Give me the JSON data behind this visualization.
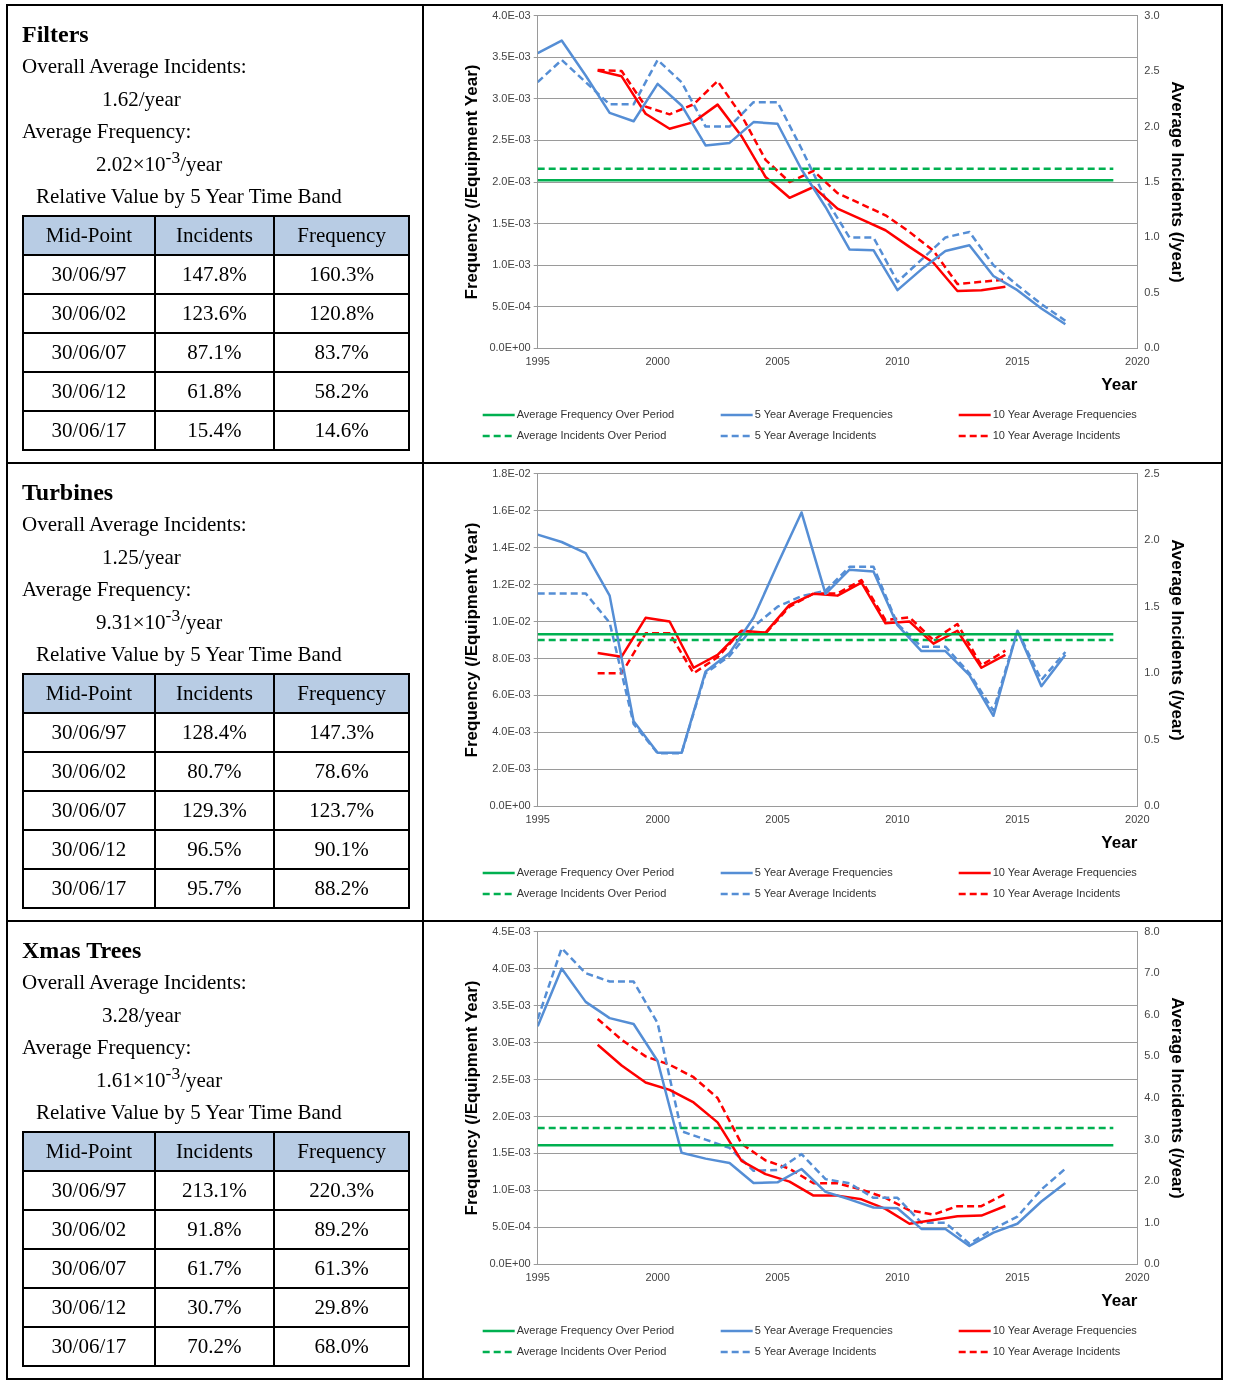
{
  "chart_data": [
    {
      "type": "other",
      "title": "Filters",
      "annotations": [
        "Overall Average Incidents:",
        "1.62/year",
        "Average Frequency:",
        "2.02×10$^{-3}$/year",
        "Relative Value by 5 Year Time Band"
      ],
      "xlabel": "Mid-Point",
      "categories": [
        "30/06/97",
        "30/06/02",
        "30/06/07",
        "30/06/12",
        "30/06/17"
      ],
      "series": [
        {
          "name": "Incidents",
          "values": [
            147.8,
            123.6,
            87.1,
            61.8,
            15.4
          ],
          "value_labels": [
            "147.8%",
            "123.6%",
            "87.1%",
            "61.8%",
            "15.4%"
          ]
        },
        {
          "name": "Frequency",
          "values": [
            160.3,
            120.8,
            83.7,
            58.2,
            14.6
          ],
          "value_labels": [
            "160.3%",
            "120.8%",
            "83.7%",
            "58.2%",
            "14.6%"
          ]
        }
      ]
    },
    {
      "type": "line",
      "xlabel": "Year",
      "ylabel": "Frequency (/Equipment Year)",
      "y2label": "Average Incidents (/year)",
      "grid": "y",
      "legend": "bottom",
      "marker": "none",
      "xlim": [
        1995,
        2020
      ],
      "xticks": [
        1995,
        2000,
        2005,
        2010,
        2015,
        2020
      ],
      "ylim": [
        0,
        0.004
      ],
      "yticks": [
        {
          "value": 0,
          "label": "0.0E+00"
        },
        {
          "value": 0.0005,
          "label": "5.0E-04"
        },
        {
          "value": 0.001,
          "label": "1.0E-03"
        },
        {
          "value": 0.0015,
          "label": "1.5E-03"
        },
        {
          "value": 0.002,
          "label": "2.0E-03"
        },
        {
          "value": 0.0025,
          "label": "2.5E-03"
        },
        {
          "value": 0.003,
          "label": "3.0E-03"
        },
        {
          "value": 0.0035,
          "label": "3.5E-03"
        },
        {
          "value": 0.004,
          "label": "4.0E-03"
        }
      ],
      "y2lim": [
        0,
        3
      ],
      "y2ticks": [
        {
          "value": 0,
          "label": "0.0"
        },
        {
          "value": 0.5,
          "label": "0.5"
        },
        {
          "value": 1,
          "label": "1.0"
        },
        {
          "value": 1.5,
          "label": "1.5"
        },
        {
          "value": 2,
          "label": "2.0"
        },
        {
          "value": 2.5,
          "label": "2.5"
        },
        {
          "value": 3,
          "label": "3.0"
        }
      ],
      "series": [
        {
          "name": "Average Frequency Over Period",
          "color": "#00b050",
          "line_style": "solid",
          "x": [
            1995,
            2019
          ],
          "values": [
            0.00202,
            0.00202
          ]
        },
        {
          "name": "5 Year Average Frequencies",
          "color": "#558ed5",
          "line_style": "solid",
          "x": [
            1995,
            1996,
            1997,
            1998,
            1999,
            2000,
            2001,
            2002,
            2003,
            2004,
            2005,
            2006,
            2007,
            2008,
            2009,
            2010,
            2011,
            2012,
            2013,
            2014,
            2015,
            2016,
            2017
          ],
          "values": [
            0.00355,
            0.0037,
            0.00328,
            0.00283,
            0.00273,
            0.00318,
            0.00292,
            0.00244,
            0.00247,
            0.00272,
            0.0027,
            0.00215,
            0.0017,
            0.00119,
            0.00118,
            0.0007,
            0.00095,
            0.00117,
            0.00124,
            0.00087,
            0.0007,
            0.00048,
            0.00029
          ]
        },
        {
          "name": "10 Year Average Frequencies",
          "color": "#ff0000",
          "line_style": "solid",
          "x": [
            1997.5,
            1998.5,
            1999.5,
            2000.5,
            2001.5,
            2002.5,
            2003.5,
            2004.5,
            2005.5,
            2006.5,
            2007.5,
            2008.5,
            2009.5,
            2010.5,
            2011.5,
            2012.5,
            2013.5,
            2014.5
          ],
          "values": [
            0.00334,
            0.00327,
            0.00282,
            0.00264,
            0.00272,
            0.00293,
            0.00255,
            0.00206,
            0.00181,
            0.00194,
            0.00168,
            0.00155,
            0.00142,
            0.00122,
            0.00103,
            0.00069,
            0.0007,
            0.00074
          ]
        },
        {
          "name": "Average Incidents Over Period",
          "color": "#00b050",
          "line_style": "dashed",
          "axis": "y2",
          "x": [
            1995,
            2019
          ],
          "values": [
            1.62,
            1.62
          ]
        },
        {
          "name": "5 Year Average Incidents",
          "color": "#558ed5",
          "line_style": "dashed",
          "axis": "y2",
          "x": [
            1995,
            1996,
            1997,
            1998,
            1999,
            2000,
            2001,
            2002,
            2003,
            2004,
            2005,
            2006,
            2007,
            2008,
            2009,
            2010,
            2011,
            2012,
            2013,
            2014,
            2015,
            2016,
            2017
          ],
          "values": [
            2.4,
            2.6,
            2.4,
            2.2,
            2.2,
            2.6,
            2.4,
            2.0,
            2.0,
            2.22,
            2.22,
            1.8,
            1.35,
            1.0,
            1.0,
            0.6,
            0.8,
            1.0,
            1.05,
            0.75,
            0.57,
            0.4,
            0.25
          ]
        },
        {
          "name": "10 Year Average Incidents",
          "color": "#ff0000",
          "line_style": "dashed",
          "axis": "y2",
          "x": [
            1997.5,
            1998.5,
            1999.5,
            2000.5,
            2001.5,
            2002.5,
            2003.5,
            2004.5,
            2005.5,
            2006.5,
            2007.5,
            2008.5,
            2009.5,
            2010.5,
            2011.5,
            2012.5,
            2013.5,
            2014.5
          ],
          "values": [
            2.51,
            2.5,
            2.18,
            2.11,
            2.2,
            2.41,
            2.1,
            1.7,
            1.5,
            1.6,
            1.4,
            1.3,
            1.2,
            1.05,
            0.88,
            0.58,
            0.6,
            0.62
          ]
        }
      ]
    },
    {
      "type": "other",
      "title": "Turbines",
      "annotations": [
        "Overall Average Incidents:",
        "1.25/year",
        "Average Frequency:",
        "9.31×10$^{-3}$/year",
        "Relative Value by 5 Year Time Band"
      ],
      "xlabel": "Mid-Point",
      "categories": [
        "30/06/97",
        "30/06/02",
        "30/06/07",
        "30/06/12",
        "30/06/17"
      ],
      "series": [
        {
          "name": "Incidents",
          "values": [
            128.4,
            80.7,
            129.3,
            96.5,
            95.7
          ],
          "value_labels": [
            "128.4%",
            "80.7%",
            "129.3%",
            "96.5%",
            "95.7%"
          ]
        },
        {
          "name": "Frequency",
          "values": [
            147.3,
            78.6,
            123.7,
            90.1,
            88.2
          ],
          "value_labels": [
            "147.3%",
            "78.6%",
            "123.7%",
            "90.1%",
            "88.2%"
          ]
        }
      ]
    },
    {
      "type": "line",
      "xlabel": "Year",
      "ylabel": "Frequency (/Equipment Year)",
      "y2label": "Average Incidents (/year)",
      "grid": "y",
      "legend": "bottom",
      "marker": "none",
      "xlim": [
        1995,
        2020
      ],
      "xticks": [
        1995,
        2000,
        2005,
        2010,
        2015,
        2020
      ],
      "ylim": [
        0,
        0.018
      ],
      "yticks": [
        {
          "value": 0,
          "label": "0.0E+00"
        },
        {
          "value": 0.002,
          "label": "2.0E-03"
        },
        {
          "value": 0.004,
          "label": "4.0E-03"
        },
        {
          "value": 0.006,
          "label": "6.0E-03"
        },
        {
          "value": 0.008,
          "label": "8.0E-03"
        },
        {
          "value": 0.01,
          "label": "1.0E-02"
        },
        {
          "value": 0.012,
          "label": "1.2E-02"
        },
        {
          "value": 0.014,
          "label": "1.4E-02"
        },
        {
          "value": 0.016,
          "label": "1.6E-02"
        },
        {
          "value": 0.018,
          "label": "1.8E-02"
        }
      ],
      "y2lim": [
        0,
        2.5
      ],
      "y2ticks": [
        {
          "value": 0,
          "label": "0.0"
        },
        {
          "value": 0.5,
          "label": "0.5"
        },
        {
          "value": 1,
          "label": "1.0"
        },
        {
          "value": 1.5,
          "label": "1.5"
        },
        {
          "value": 2,
          "label": "2.0"
        },
        {
          "value": 2.5,
          "label": "2.5"
        }
      ],
      "series": [
        {
          "name": "Average Frequency Over Period",
          "color": "#00b050",
          "line_style": "solid",
          "x": [
            1995,
            2019
          ],
          "values": [
            0.00931,
            0.00931
          ]
        },
        {
          "name": "5 Year Average Frequencies",
          "color": "#558ed5",
          "line_style": "solid",
          "x": [
            1995,
            1996,
            1997,
            1998,
            1999,
            2000,
            2001,
            2002,
            2003,
            2004,
            2005,
            2006,
            2007,
            2008,
            2009,
            2010,
            2011,
            2012,
            2013,
            2014,
            2015,
            2016,
            2017
          ],
          "values": [
            0.0147,
            0.0143,
            0.0137,
            0.0114,
            0.0046,
            0.0029,
            0.0029,
            0.0073,
            0.0083,
            0.0102,
            0.0131,
            0.0159,
            0.0115,
            0.0128,
            0.0127,
            0.0098,
            0.0084,
            0.0084,
            0.0071,
            0.0049,
            0.0095,
            0.0065,
            0.0082
          ]
        },
        {
          "name": "10 Year Average Frequencies",
          "color": "#ff0000",
          "line_style": "solid",
          "x": [
            1997.5,
            1998.5,
            1999.5,
            2000.5,
            2001.5,
            2002.5,
            2003.5,
            2004.5,
            2005.5,
            2006.5,
            2007.5,
            2008.5,
            2009.5,
            2010.5,
            2011.5,
            2012.5,
            2013.5,
            2014.5
          ],
          "values": [
            0.0083,
            0.0081,
            0.0102,
            0.01,
            0.0075,
            0.0082,
            0.0095,
            0.0094,
            0.0109,
            0.0115,
            0.0114,
            0.0121,
            0.0099,
            0.01,
            0.0088,
            0.0095,
            0.0075,
            0.0082
          ]
        },
        {
          "name": "Average Incidents Over Period",
          "color": "#00b050",
          "line_style": "dashed",
          "axis": "y2",
          "x": [
            1995,
            2019
          ],
          "values": [
            1.25,
            1.25
          ]
        },
        {
          "name": "5 Year Average Incidents",
          "color": "#558ed5",
          "line_style": "dashed",
          "axis": "y2",
          "x": [
            1995,
            1996,
            1997,
            1998,
            1999,
            2000,
            2001,
            2002,
            2003,
            2004,
            2005,
            2006,
            2007,
            2008,
            2009,
            2010,
            2011,
            2012,
            2013,
            2014,
            2015,
            2016,
            2017
          ],
          "values": [
            1.6,
            1.6,
            1.6,
            1.38,
            0.62,
            0.4,
            0.4,
            1.0,
            1.13,
            1.35,
            1.5,
            1.58,
            1.62,
            1.8,
            1.8,
            1.37,
            1.2,
            1.2,
            1.0,
            0.72,
            1.32,
            0.95,
            1.16
          ]
        },
        {
          "name": "10 Year Average Incidents",
          "color": "#ff0000",
          "line_style": "dashed",
          "axis": "y2",
          "x": [
            1997.5,
            1998.5,
            1999.5,
            2000.5,
            2001.5,
            2002.5,
            2003.5,
            2004.5,
            2005.5,
            2006.5,
            2007.5,
            2008.5,
            2009.5,
            2010.5,
            2011.5,
            2012.5,
            2013.5,
            2014.5
          ],
          "values": [
            1.0,
            1.0,
            1.3,
            1.3,
            1.0,
            1.12,
            1.32,
            1.3,
            1.5,
            1.6,
            1.6,
            1.7,
            1.4,
            1.42,
            1.25,
            1.37,
            1.06,
            1.17
          ]
        }
      ]
    },
    {
      "type": "other",
      "title": "Xmas Trees",
      "annotations": [
        "Overall Average Incidents:",
        "3.28/year",
        "Average Frequency:",
        "1.61×10$^{-3}$/year",
        "Relative Value by 5 Year Time Band"
      ],
      "xlabel": "Mid-Point",
      "categories": [
        "30/06/97",
        "30/06/02",
        "30/06/07",
        "30/06/12",
        "30/06/17"
      ],
      "series": [
        {
          "name": "Incidents",
          "values": [
            213.1,
            91.8,
            61.7,
            30.7,
            70.2
          ],
          "value_labels": [
            "213.1%",
            "91.8%",
            "61.7%",
            "30.7%",
            "70.2%"
          ]
        },
        {
          "name": "Frequency",
          "values": [
            220.3,
            89.2,
            61.3,
            29.8,
            68.0
          ],
          "value_labels": [
            "220.3%",
            "89.2%",
            "61.3%",
            "29.8%",
            "68.0%"
          ]
        }
      ]
    },
    {
      "type": "line",
      "xlabel": "Year",
      "ylabel": "Frequency (/Equipment Year)",
      "y2label": "Average Incidents (/year)",
      "grid": "y",
      "legend": "bottom",
      "marker": "none",
      "xlim": [
        1995,
        2020
      ],
      "xticks": [
        1995,
        2000,
        2005,
        2010,
        2015,
        2020
      ],
      "ylim": [
        0,
        0.0045
      ],
      "yticks": [
        {
          "value": 0,
          "label": "0.0E+00"
        },
        {
          "value": 0.0005,
          "label": "5.0E-04"
        },
        {
          "value": 0.001,
          "label": "1.0E-03"
        },
        {
          "value": 0.0015,
          "label": "1.5E-03"
        },
        {
          "value": 0.002,
          "label": "2.0E-03"
        },
        {
          "value": 0.0025,
          "label": "2.5E-03"
        },
        {
          "value": 0.003,
          "label": "3.0E-03"
        },
        {
          "value": 0.0035,
          "label": "3.5E-03"
        },
        {
          "value": 0.004,
          "label": "4.0E-03"
        },
        {
          "value": 0.0045,
          "label": "4.5E-03"
        }
      ],
      "y2lim": [
        0,
        8
      ],
      "y2ticks": [
        {
          "value": 0,
          "label": "0.0"
        },
        {
          "value": 1,
          "label": "1.0"
        },
        {
          "value": 2,
          "label": "2.0"
        },
        {
          "value": 3,
          "label": "3.0"
        },
        {
          "value": 4,
          "label": "4.0"
        },
        {
          "value": 5,
          "label": "5.0"
        },
        {
          "value": 6,
          "label": "6.0"
        },
        {
          "value": 7,
          "label": "7.0"
        },
        {
          "value": 8,
          "label": "8.0"
        }
      ],
      "series": [
        {
          "name": "Average Frequency Over Period",
          "color": "#00b050",
          "line_style": "solid",
          "x": [
            1995,
            2019
          ],
          "values": [
            0.00161,
            0.00161
          ]
        },
        {
          "name": "5 Year Average Frequencies",
          "color": "#558ed5",
          "line_style": "solid",
          "x": [
            1995,
            1996,
            1997,
            1998,
            1999,
            2000,
            2001,
            2002,
            2003,
            2004,
            2005,
            2006,
            2007,
            2008,
            2009,
            2010,
            2011,
            2012,
            2013,
            2014,
            2015,
            2016,
            2017
          ],
          "values": [
            0.00322,
            0.004,
            0.00355,
            0.00333,
            0.00325,
            0.00275,
            0.00151,
            0.00143,
            0.00137,
            0.0011,
            0.00111,
            0.00129,
            0.00098,
            0.00088,
            0.00077,
            0.00076,
            0.00048,
            0.00048,
            0.00025,
            0.00043,
            0.00055,
            0.00085,
            0.0011
          ]
        },
        {
          "name": "10 Year Average Frequencies",
          "color": "#ff0000",
          "line_style": "solid",
          "x": [
            1997.5,
            1998.5,
            1999.5,
            2000.5,
            2001.5,
            2002.5,
            2003.5,
            2004.5,
            2005.5,
            2006.5,
            2007.5,
            2008.5,
            2009.5,
            2010.5,
            2011.5,
            2012.5,
            2013.5,
            2014.5
          ],
          "values": [
            0.00297,
            0.00269,
            0.00246,
            0.00236,
            0.00219,
            0.00192,
            0.0014,
            0.00122,
            0.00112,
            0.00093,
            0.00093,
            0.00088,
            0.00075,
            0.00055,
            0.0006,
            0.00065,
            0.00066,
            0.00079
          ]
        },
        {
          "name": "Average Incidents Over Period",
          "color": "#00b050",
          "line_style": "dashed",
          "axis": "y2",
          "x": [
            1995,
            2019
          ],
          "values": [
            3.28,
            3.28
          ]
        },
        {
          "name": "5 Year Average Incidents",
          "color": "#558ed5",
          "line_style": "dashed",
          "axis": "y2",
          "x": [
            1995,
            1996,
            1997,
            1998,
            1999,
            2000,
            2001,
            2002,
            2003,
            2004,
            2005,
            2006,
            2007,
            2008,
            2009,
            2010,
            2011,
            2012,
            2013,
            2014,
            2015,
            2016,
            2017
          ],
          "values": [
            5.9,
            7.6,
            7.0,
            6.8,
            6.8,
            5.8,
            3.2,
            3.0,
            2.8,
            2.25,
            2.27,
            2.65,
            2.05,
            1.95,
            1.6,
            1.6,
            1.0,
            1.0,
            0.5,
            0.85,
            1.15,
            1.8,
            2.3
          ]
        },
        {
          "name": "10 Year Average Incidents",
          "color": "#ff0000",
          "line_style": "dashed",
          "axis": "y2",
          "x": [
            1997.5,
            1998.5,
            1999.5,
            2000.5,
            2001.5,
            2002.5,
            2003.5,
            2004.5,
            2005.5,
            2006.5,
            2007.5,
            2008.5,
            2009.5,
            2010.5,
            2011.5,
            2012.5,
            2013.5,
            2014.5
          ],
          "values": [
            5.9,
            5.4,
            5.0,
            4.8,
            4.5,
            4.0,
            2.9,
            2.5,
            2.3,
            1.95,
            1.95,
            1.8,
            1.6,
            1.3,
            1.2,
            1.4,
            1.4,
            1.7
          ]
        }
      ]
    }
  ]
}
